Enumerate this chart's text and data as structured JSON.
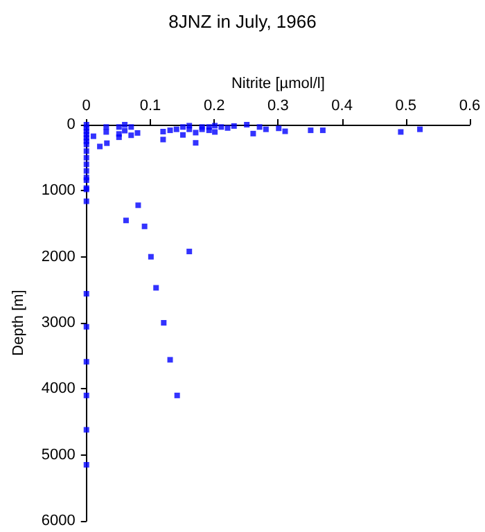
{
  "chart_data": {
    "type": "scatter",
    "title": "8JNZ in July, 1966",
    "xlabel": "Nitrite [µmol/l]",
    "ylabel": "Depth [m]",
    "marker": "square",
    "grid": false,
    "xlim": [
      0,
      0.6
    ],
    "xticks": [
      0,
      0.1,
      0.2,
      0.3,
      0.4,
      0.5,
      0.6
    ],
    "ylim": [
      6000,
      0
    ],
    "yticks": [
      0,
      1000,
      2000,
      3000,
      4000,
      5000,
      6000
    ],
    "series": [
      {
        "color": "#0000ff",
        "x": [
          0,
          0,
          0,
          0,
          0,
          0,
          0,
          0,
          0,
          0,
          0,
          0,
          0,
          0,
          0,
          0,
          0,
          0,
          0,
          0,
          0,
          0,
          0.011,
          0.021,
          0.032,
          0.031,
          0.031,
          0.051,
          0.051,
          0.051,
          0.06,
          0.06,
          0.07,
          0.07,
          0.08,
          0.12,
          0.12,
          0.131,
          0.141,
          0.151,
          0.151,
          0.161,
          0.161,
          0.171,
          0.171,
          0.181,
          0.181,
          0.192,
          0.192,
          0.201,
          0.201,
          0.211,
          0.221,
          0.231,
          0.251,
          0.261,
          0.271,
          0.281,
          0.301,
          0.311,
          0.351,
          0.37,
          0.492,
          0.522,
          0.081,
          0.062,
          0.091,
          0.101,
          0.161,
          0.109,
          0.121,
          0.131,
          0.142
        ],
        "values": [
          0,
          50,
          100,
          150,
          200,
          250,
          300,
          400,
          500,
          600,
          700,
          800,
          840,
          960,
          980,
          1160,
          2560,
          3060,
          3590,
          4100,
          4620,
          5150,
          175,
          330,
          280,
          35,
          110,
          35,
          140,
          190,
          0,
          90,
          35,
          160,
          125,
          105,
          225,
          85,
          70,
          35,
          155,
          15,
          70,
          120,
          275,
          35,
          70,
          35,
          85,
          15,
          110,
          35,
          50,
          20,
          0,
          135,
          35,
          70,
          55,
          100,
          85,
          85,
          110,
          70,
          1220,
          1450,
          1540,
          2000,
          1920,
          2470,
          3000,
          3560,
          4100
        ]
      }
    ]
  }
}
